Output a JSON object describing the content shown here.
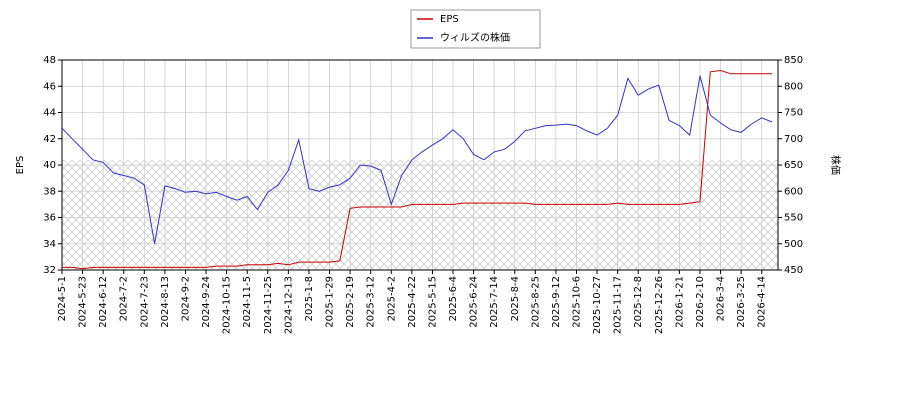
{
  "chart_data": {
    "type": "line",
    "categories": [
      "2024-5-1",
      null,
      "2024-5-23",
      null,
      "2024-6-12",
      null,
      "2024-7-2",
      null,
      "2024-7-23",
      null,
      "2024-8-13",
      null,
      "2024-9-2",
      null,
      "2024-9-24",
      null,
      "2024-10-15",
      null,
      "2024-11-5",
      null,
      "2024-11-25",
      null,
      "2024-12-13",
      null,
      "2025-1-8",
      null,
      "2025-1-29",
      null,
      "2025-2-19",
      null,
      "2025-3-12",
      null,
      "2025-4-2",
      null,
      "2025-4-22",
      null,
      "2025-5-15",
      null,
      "2025-6-4",
      null,
      "2025-6-24",
      null,
      "2025-7-14",
      null,
      "2025-8-4",
      null,
      "2025-8-25",
      null,
      "2025-9-12",
      null,
      "2025-10-6",
      null,
      "2025-10-27",
      null,
      "2025-11-17",
      null,
      "2025-12-8",
      null,
      "2025-12-26",
      null,
      "2026-1-21",
      null,
      "2026-2-10",
      null,
      "2026-3-4",
      null,
      "2026-3-25",
      null,
      "2026-4-14",
      null
    ],
    "series": [
      {
        "name": "EPS",
        "color": "#cc0000",
        "values": [
          32.2,
          32.2,
          32.1,
          32.2,
          32.2,
          32.2,
          32.2,
          32.2,
          32.2,
          32.2,
          32.2,
          32.2,
          32.2,
          32.2,
          32.2,
          32.3,
          32.3,
          32.3,
          32.4,
          32.4,
          32.4,
          32.5,
          32.4,
          32.6,
          32.6,
          32.6,
          32.6,
          32.7,
          36.7,
          36.8,
          36.8,
          36.8,
          36.8,
          36.8,
          37.0,
          37.0,
          37.0,
          37.0,
          37.0,
          37.1,
          37.1,
          37.1,
          37.1,
          37.1,
          37.1,
          37.1,
          37.0,
          37.0,
          37.0,
          37.0,
          37.0,
          37.0,
          37.0,
          37.0,
          37.1,
          37.0,
          37.0,
          37.0,
          37.0,
          37.0,
          37.0,
          37.1,
          37.2,
          47.1,
          47.2,
          46.95,
          46.95,
          46.95,
          46.95,
          46.95
        ]
      },
      {
        "name": "ウィルズの株価",
        "color": "#3333cc",
        "axis": "y2",
        "values": [
          720,
          700,
          680,
          660,
          655,
          635,
          630,
          625,
          612,
          500,
          610,
          605,
          598,
          600,
          595,
          598,
          590,
          583,
          590,
          565,
          598,
          612,
          640,
          698,
          605,
          600,
          608,
          612,
          625,
          650,
          648,
          640,
          575,
          630,
          660,
          675,
          688,
          700,
          717,
          700,
          670,
          660,
          675,
          680,
          695,
          715,
          720,
          725,
          726,
          728,
          725,
          715,
          707,
          720,
          745,
          815,
          783,
          795,
          802,
          735,
          725,
          707,
          820,
          745,
          730,
          717,
          712,
          728,
          740,
          732
        ]
      }
    ],
    "ylim": [
      32,
      48
    ],
    "yticks": [
      32,
      34,
      36,
      38,
      40,
      42,
      44,
      46,
      48
    ],
    "y2lim": [
      450,
      850
    ],
    "y2ticks": [
      450,
      500,
      550,
      600,
      650,
      700,
      750,
      800,
      850
    ],
    "ylabel": "EPS",
    "y2label": "株価",
    "grid": true,
    "legend": "upper center"
  }
}
